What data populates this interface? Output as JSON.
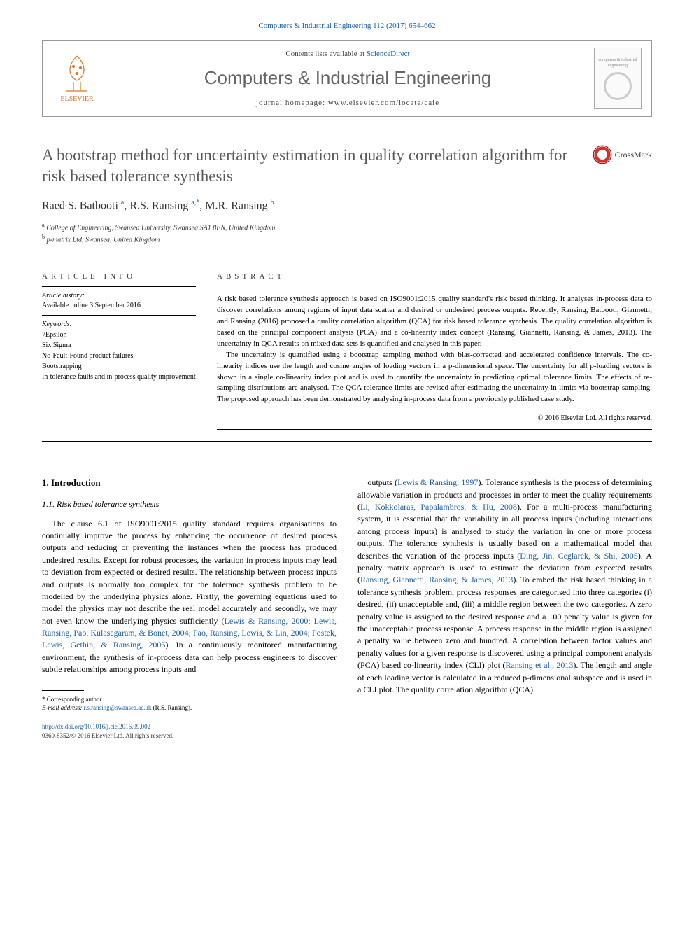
{
  "citation": "Computers & Industrial Engineering 112 (2017) 654–662",
  "header": {
    "contents_prefix": "Contents lists available at ",
    "contents_link": "ScienceDirect",
    "journal_name": "Computers & Industrial Engineering",
    "homepage_prefix": "journal homepage: ",
    "homepage_url": "www.elsevier.com/locate/caie",
    "publisher_label": "ELSEVIER",
    "thumb_label": "computers & industrial engineering"
  },
  "crossmark_label": "CrossMark",
  "title": "A bootstrap method for uncertainty estimation in quality correlation algorithm for risk based tolerance synthesis",
  "authors_html": "Raed S. Batbooti <sup>a</sup>, R.S. Ransing <sup>a,*</sup>, M.R. Ransing <sup>b</sup>",
  "affiliations": [
    {
      "sup": "a",
      "text": "College of Engineering, Swansea University, Swansea SA1 8EN, United Kingdom"
    },
    {
      "sup": "b",
      "text": "p-matrix Ltd, Swansea, United Kingdom"
    }
  ],
  "article_info": {
    "head": "ARTICLE INFO",
    "history_label": "Article history:",
    "history_line": "Available online 3 September 2016",
    "keywords_label": "Keywords:",
    "keywords": [
      "7Epsilon",
      "Six Sigma",
      "No-Fault-Found product failures",
      "Bootstrapping",
      "In-tolerance faults and in-process quality improvement"
    ]
  },
  "abstract": {
    "head": "ABSTRACT",
    "p1": "A risk based tolerance synthesis approach is based on ISO9001:2015 quality standard's risk based thinking. It analyses in-process data to discover correlations among regions of input data scatter and desired or undesired process outputs. Recently, Ransing, Batbooti, Giannetti, and Ransing (2016) proposed a quality correlation algorithm (QCA) for risk based tolerance synthesis. The quality correlation algorithm is based on the principal component analysis (PCA) and a co-linearity index concept (Ransing, Giannetti, Ransing, & James, 2013). The uncertainty in QCA results on mixed data sets is quantified and analysed in this paper.",
    "p2": "The uncertainty is quantified using a bootstrap sampling method with bias-corrected and accelerated confidence intervals. The co-linearity indices use the length and cosine angles of loading vectors in a p-dimensional space. The uncertainty for all p-loading vectors is shown in a single co-linearity index plot and is used to quantify the uncertainty in predicting optimal tolerance limits. The effects of re-sampling distributions are analysed. The QCA tolerance limits are revised after estimating the uncertainty in limits via bootstrap sampling. The proposed approach has been demonstrated by analysing in-process data from a previously published case study.",
    "copyright": "© 2016 Elsevier Ltd. All rights reserved."
  },
  "body": {
    "section_num": "1. Introduction",
    "subsection": "1.1. Risk based tolerance synthesis",
    "col1": "The clause 6.1 of ISO9001:2015 quality standard requires organisations to continually improve the process by enhancing the occurrence of desired process outputs and reducing or preventing the instances when the process has produced undesired results. Except for robust processes, the variation in process inputs may lead to deviation from expected or desired results. The relationship between process inputs and outputs is normally too complex for the tolerance synthesis problem to be modelled by the underlying physics alone. Firstly, the governing equations used to model the physics may not describe the real model accurately and secondly, we may not even know the underlying physics sufficiently (<span class=\"ref-link\">Lewis & Ransing, 2000; Lewis, Ransing, Pao, Kulasegaram, & Bonet, 2004; Pao, Ransing, Lewis, & Lin, 2004; Postek, Lewis, Gethin, & Ransing, 2005</span>). In a continuously monitored manufacturing environment, the synthesis of in-process data can help process engineers to discover subtle relationships among process inputs and",
    "col2": "outputs (<span class=\"ref-link\">Lewis & Ransing, 1997</span>). Tolerance synthesis is the process of determining allowable variation in products and processes in order to meet the quality requirements (<span class=\"ref-link\">Li, Kokkolaras, Papalambros, & Hu, 2008</span>). For a multi-process manufacturing system, it is essential that the variability in all process inputs (including interactions among process inputs) is analysed to study the variation in one or more process outputs. The tolerance synthesis is usually based on a mathematical model that describes the variation of the process inputs (<span class=\"ref-link\">Ding, Jin, Ceglarek, & Shi, 2005</span>). A penalty matrix approach is used to estimate the deviation from expected results (<span class=\"ref-link\">Ransing, Giannetti, Ransing, & James, 2013</span>). To embed the risk based thinking in a tolerance synthesis problem, process responses are categorised into three categories (i) desired, (ii) unacceptable and, (iii) a middle region between the two categories. A zero penalty value is assigned to the desired response and a 100 penalty value is given for the unacceptable process response. A process response in the middle region is assigned a penalty value between zero and hundred. A correlation between factor values and penalty values for a given response is discovered using a principal component analysis (PCA) based co-linearity index (CLI) plot (<span class=\"ref-link\">Ransing et al., 2013</span>). The length and angle of each loading vector is calculated in a reduced p-dimensional subspace and is used in a CLI plot. The quality correlation algorithm (QCA)"
  },
  "footnotes": {
    "corr": "* Corresponding author.",
    "email_label": "E-mail address: ",
    "email": "r.s.ransing@swansea.ac.uk",
    "email_suffix": " (R.S. Ransing)."
  },
  "doi": {
    "url": "http://dx.doi.org/10.1016/j.cie.2016.09.002",
    "issn_line": "0360-8352/© 2016 Elsevier Ltd. All rights reserved."
  },
  "colors": {
    "link": "#2060a8",
    "title_gray": "#5a5a5a",
    "elsevier_orange": "#e8711c"
  }
}
